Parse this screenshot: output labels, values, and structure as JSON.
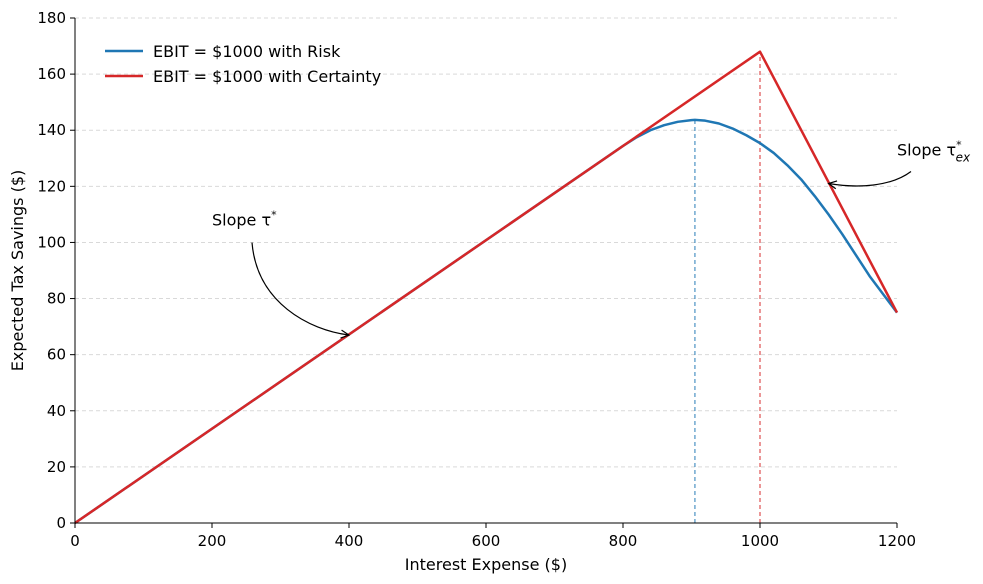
{
  "chart_data": {
    "type": "line",
    "xlabel": "Interest Expense ($)",
    "ylabel": "Expected Tax Savings ($)",
    "xlim": [
      0,
      1200
    ],
    "ylim": [
      0,
      180
    ],
    "xticks": [
      0,
      200,
      400,
      600,
      800,
      1000,
      1200
    ],
    "yticks": [
      0,
      20,
      40,
      60,
      80,
      100,
      120,
      140,
      160,
      180
    ],
    "grid": "horizontal dashed",
    "legend_position": "top-left",
    "series": [
      {
        "name": "EBIT = $1000 with Risk",
        "color": "#1f77b4",
        "x": [
          0,
          800,
          820,
          840,
          860,
          880,
          900,
          905,
          920,
          940,
          960,
          980,
          1000,
          1020,
          1040,
          1060,
          1080,
          1100,
          1120,
          1140,
          1160,
          1180,
          1200
        ],
        "y": [
          0,
          134.4,
          137.5,
          140.0,
          141.8,
          143.0,
          143.6,
          143.7,
          143.4,
          142.4,
          140.6,
          138.2,
          135.4,
          131.9,
          127.5,
          122.5,
          116.5,
          110.0,
          103.0,
          95.5,
          88.0,
          81.5,
          75.0
        ]
      },
      {
        "name": "EBIT = $1000 with Certainty",
        "color": "#d62728",
        "x": [
          0,
          1000,
          1200
        ],
        "y": [
          0,
          168,
          75
        ]
      }
    ],
    "reference_lines": [
      {
        "x": 905,
        "y_top": 143.7,
        "color": "#1f77b4"
      },
      {
        "x": 1000,
        "y_top": 168,
        "color": "#d62728"
      }
    ],
    "annotations": [
      {
        "label_main": "Slope τ",
        "label_sup": "*",
        "label_sub": "",
        "text_x": 200,
        "text_y": 106,
        "target_x": 400,
        "target_y": 67
      },
      {
        "label_main": "Slope τ",
        "label_sup": "*",
        "label_sub": "ex",
        "text_x": 1200,
        "text_y": 131,
        "target_x": 1100,
        "target_y": 121
      }
    ]
  }
}
